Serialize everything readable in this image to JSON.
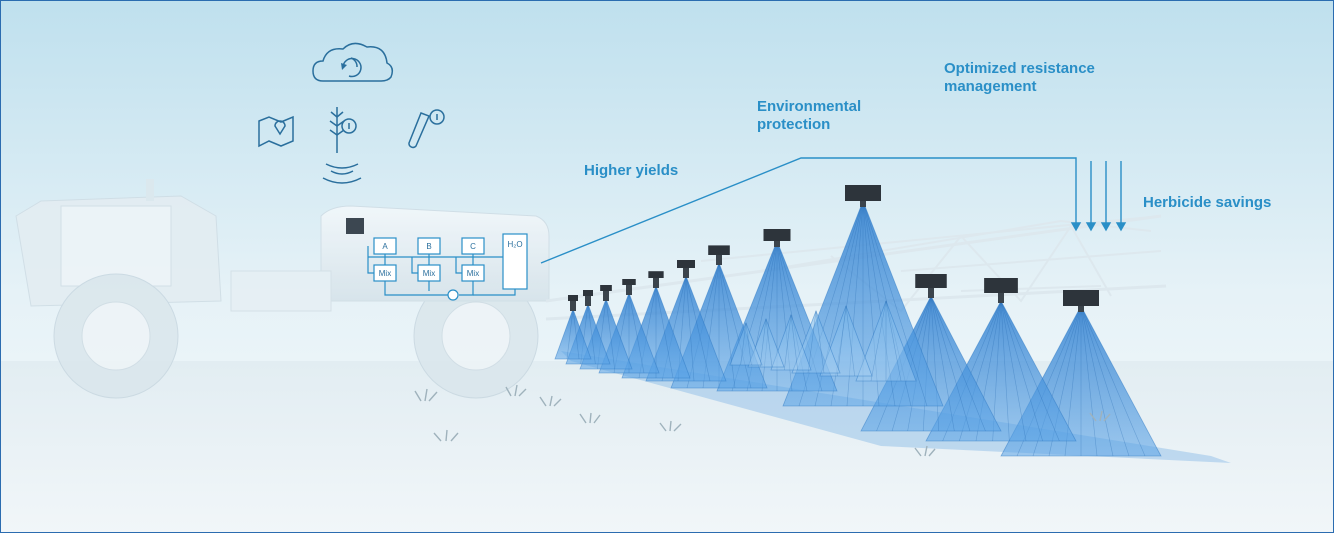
{
  "labels": {
    "higher_yields": "Higher yields",
    "environmental_protection": "Environmental protection",
    "optimized_resistance": "Optimized resistance management",
    "herbicide_savings": "Herbicide savings"
  },
  "mixer": {
    "tanks": [
      "A",
      "B",
      "C"
    ],
    "mix_label": "Mix",
    "water_label": "H₂O"
  },
  "icons": [
    "cloud-sync-icon",
    "map-pin-icon",
    "crop-info-icon",
    "test-tube-icon",
    "wireless-signal-icon"
  ],
  "colors": {
    "accent": "#2a8fc7",
    "spray": "#3f8fd6",
    "tractor": "#e4eef3",
    "sky_top": "#bfe0ee",
    "ground": "#e9f1f5"
  }
}
